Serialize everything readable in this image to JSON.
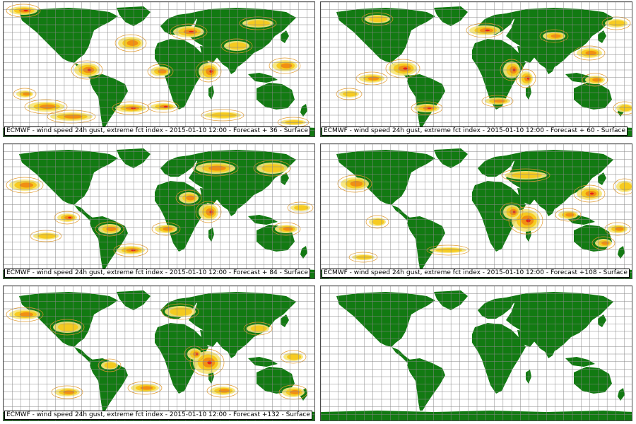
{
  "colors": {
    "land": "#127a12",
    "ocean": "#ffffff",
    "grid": "#8a8a8a",
    "contour": "#e39a2a",
    "fill_light": "#f7e67a",
    "fill_mid": "#f6c818",
    "fill_high": "#f08a12",
    "fill_extreme": "#e41a1a"
  },
  "panels": [
    {
      "caption": "ECMWF - wind speed 24h gust, extreme fct index - 2015-01-10 12:00 - Forecast + 36 - Surface",
      "forecast_hours": 36
    },
    {
      "caption": "ECMWF - wind speed 24h gust, extreme fct index - 2015-01-10 12:00 - Forecast + 60 - Surface",
      "forecast_hours": 60
    },
    {
      "caption": "ECMWF - wind speed 24h gust, extreme fct index - 2015-01-10 12:00 - Forecast + 84 - Surface",
      "forecast_hours": 84
    },
    {
      "caption": "ECMWF - wind speed 24h gust, extreme fct index - 2015-01-10 12:00 - Forecast +108 - Surface",
      "forecast_hours": 108
    },
    {
      "caption": "ECMWF - wind speed 24h gust, extreme fct index - 2015-01-10 12:00 - Forecast +132 - Surface",
      "forecast_hours": 132
    },
    {
      "caption": "",
      "forecast_hours": null
    }
  ]
}
